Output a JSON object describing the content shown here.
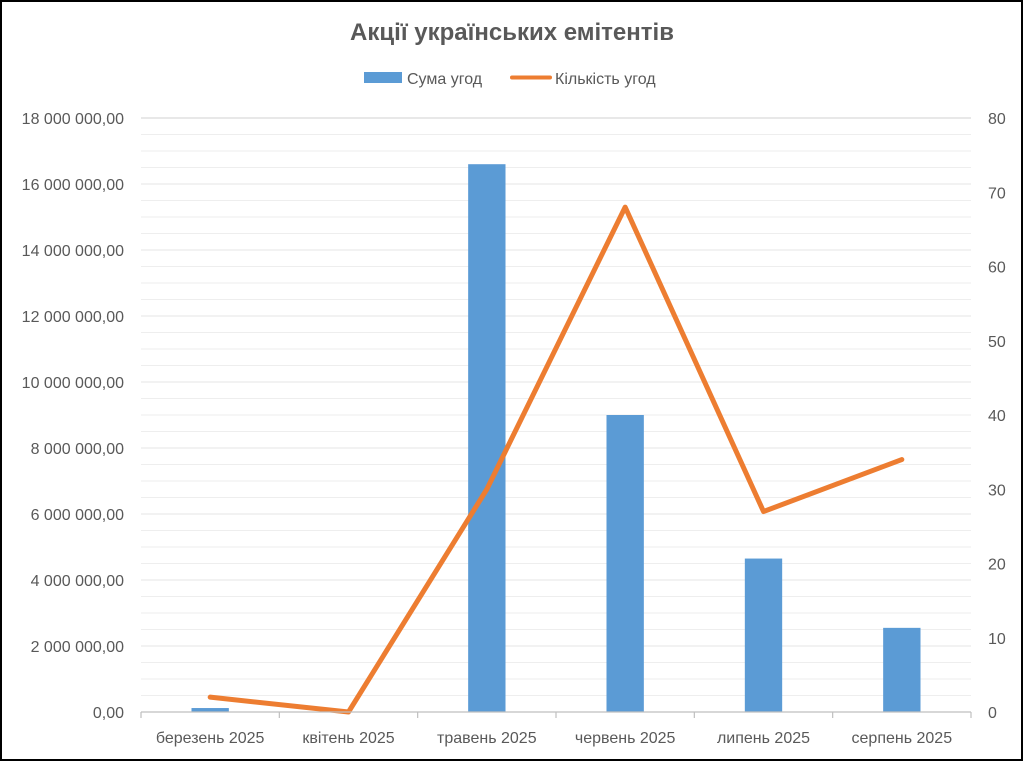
{
  "chart_data": {
    "type": "bar",
    "title": "Акції українських емітентів",
    "categories": [
      "березень 2025",
      "квітень 2025",
      "травень 2025",
      "червень 2025",
      "липень 2025",
      "серпень 2025"
    ],
    "series": [
      {
        "name": "Сума угод",
        "type": "bar",
        "axis": "left",
        "color": "#5B9BD5",
        "values": [
          120000,
          0,
          16600000,
          9000000,
          4650000,
          2550000
        ]
      },
      {
        "name": "Кількість угод",
        "type": "line",
        "axis": "right",
        "color": "#ED7D31",
        "values": [
          2,
          0,
          30,
          68,
          27,
          34
        ]
      }
    ],
    "y_left": {
      "min": 0,
      "max": 18000000,
      "step": 2000000,
      "tick_labels": [
        "0,00",
        "2 000 000,00",
        "4 000 000,00",
        "6 000 000,00",
        "8 000 000,00",
        "10 000 000,00",
        "12 000 000,00",
        "14 000 000,00",
        "16 000 000,00",
        "18 000 000,00"
      ]
    },
    "y_right": {
      "min": 0,
      "max": 80,
      "step": 10,
      "tick_labels": [
        "0",
        "10",
        "20",
        "30",
        "40",
        "50",
        "60",
        "70",
        "80"
      ]
    },
    "grid": true,
    "legend_position": "top"
  }
}
